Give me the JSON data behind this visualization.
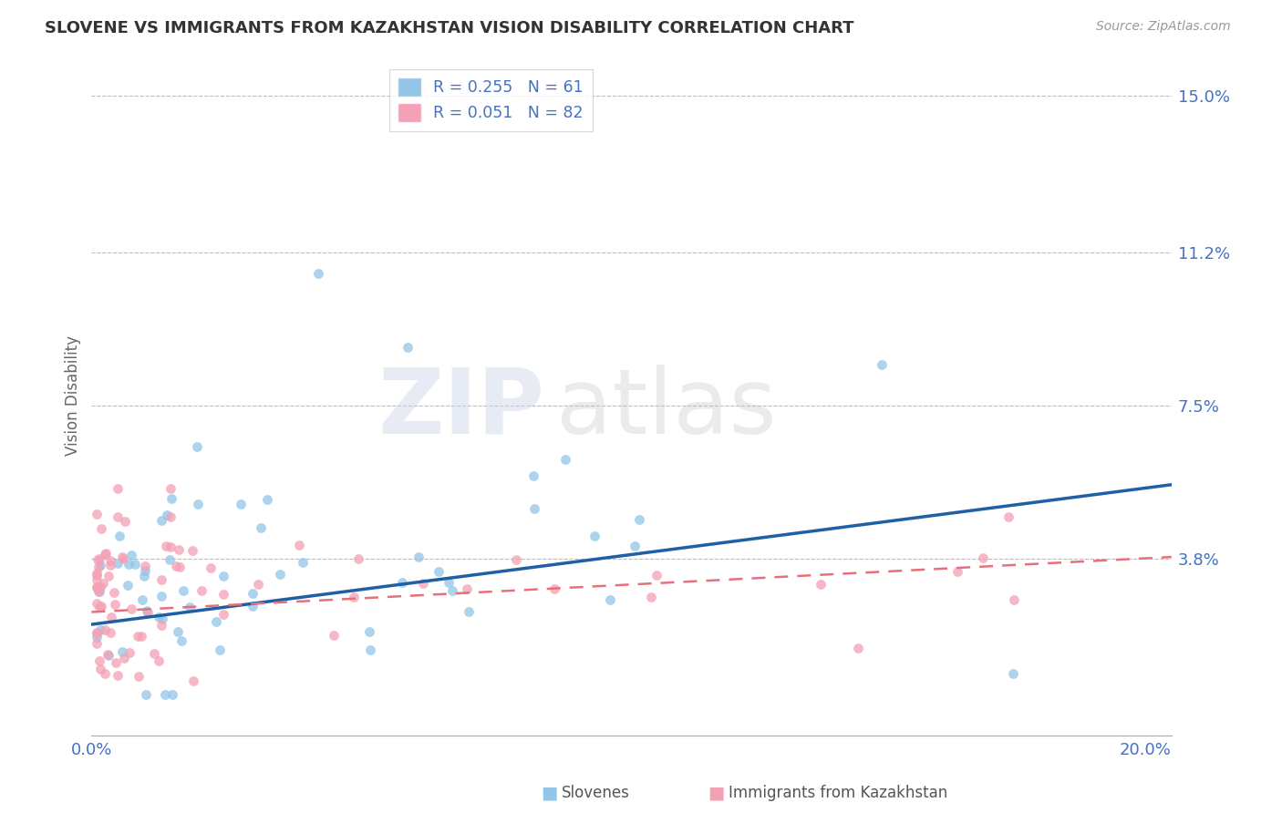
{
  "title": "SLOVENE VS IMMIGRANTS FROM KAZAKHSTAN VISION DISABILITY CORRELATION CHART",
  "source": "Source: ZipAtlas.com",
  "ylabel": "Vision Disability",
  "xlim": [
    0.0,
    0.205
  ],
  "ylim": [
    -0.005,
    0.16
  ],
  "ytick_vals": [
    0.038,
    0.075,
    0.112,
    0.15
  ],
  "ytick_labels": [
    "3.8%",
    "7.5%",
    "11.2%",
    "15.0%"
  ],
  "xtick_vals": [
    0.0,
    0.2
  ],
  "xtick_labels": [
    "0.0%",
    "20.0%"
  ],
  "color_slovene": "#92C5E8",
  "color_kazakh": "#F4A0B5",
  "color_line_slovene": "#1F5FA6",
  "color_line_kazakh": "#E8707A",
  "color_axis_labels": "#4472C4",
  "color_title": "#333333",
  "background_color": "#FFFFFF",
  "legend_text1": "R = 0.255   N = 61",
  "legend_text2": "R = 0.051   N = 82",
  "bottom_legend_slovene": "Slovenes",
  "bottom_legend_kazakh": "Immigrants from Kazakhstan"
}
